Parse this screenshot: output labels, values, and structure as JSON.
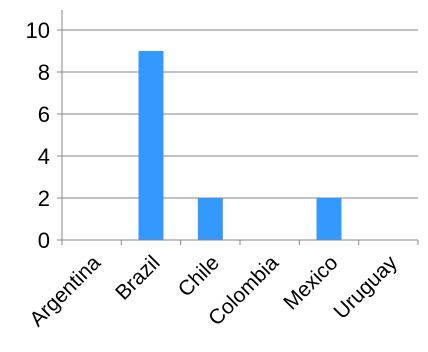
{
  "chart_data": {
    "type": "bar",
    "categories": [
      "Argentina",
      "Brazil",
      "Chile",
      "Colombia",
      "Mexico",
      "Uruguay"
    ],
    "values": [
      0,
      9,
      2,
      0,
      2,
      0
    ],
    "ylim": [
      0,
      10
    ],
    "yticks": [
      0,
      2,
      4,
      6,
      8,
      10
    ],
    "grid": true,
    "bar_color": "#3399ff",
    "axis_color": "#868686",
    "grid_color": "#868686"
  }
}
